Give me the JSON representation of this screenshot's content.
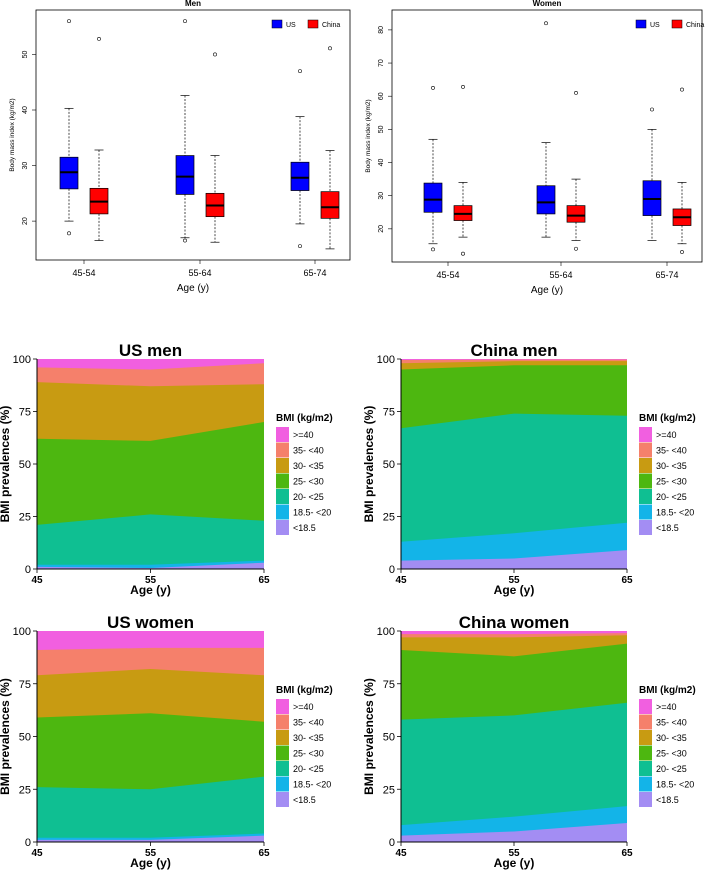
{
  "figure": {
    "bmi_categories": [
      ">=40",
      "35- <40",
      "30- <35",
      "25- <30",
      "20- <25",
      "18.5- <20",
      "<18.5"
    ],
    "category_colors": [
      "#F15FE0",
      "#F5806B",
      "#C89B12",
      "#4DB710",
      "#0FBF92",
      "#13B4E8",
      "#A38DF3"
    ],
    "us_color": "#0000FF",
    "china_color": "#FF0000"
  },
  "chart_data": [
    {
      "type": "box",
      "title": "Men",
      "xlabel": "Age (y)",
      "ylabel": "Body mass index (kg/m2)",
      "ylim": [
        13,
        58
      ],
      "yticks": [
        20,
        30,
        40,
        50
      ],
      "categories": [
        "45-54",
        "55-64",
        "65-74"
      ],
      "legend": [
        "US",
        "China"
      ],
      "series": [
        {
          "name": "US",
          "boxes": [
            {
              "whislo": 20.0,
              "q1": 25.8,
              "med": 28.8,
              "q3": 31.5,
              "whishi": 40.3,
              "outliers": [
                56.0,
                17.8
              ]
            },
            {
              "whislo": 17.0,
              "q1": 24.8,
              "med": 28.0,
              "q3": 31.8,
              "whishi": 42.6,
              "outliers": [
                56.0,
                16.5
              ]
            },
            {
              "whislo": 19.5,
              "q1": 25.5,
              "med": 27.8,
              "q3": 30.6,
              "whishi": 38.8,
              "outliers": [
                47.0,
                15.5
              ]
            }
          ]
        },
        {
          "name": "China",
          "boxes": [
            {
              "whislo": 16.5,
              "q1": 21.3,
              "med": 23.5,
              "q3": 25.9,
              "whishi": 32.8,
              "outliers": [
                52.8
              ]
            },
            {
              "whislo": 16.2,
              "q1": 20.8,
              "med": 22.8,
              "q3": 25.0,
              "whishi": 31.8,
              "outliers": [
                50.0
              ]
            },
            {
              "whislo": 15.0,
              "q1": 20.5,
              "med": 22.5,
              "q3": 25.3,
              "whishi": 32.7,
              "outliers": [
                51.1
              ]
            }
          ]
        }
      ]
    },
    {
      "type": "box",
      "title": "Women",
      "xlabel": "Age (y)",
      "ylabel": "Body mass index (kg/m2)",
      "ylim": [
        10,
        86
      ],
      "yticks": [
        20,
        30,
        40,
        50,
        60,
        70,
        80
      ],
      "categories": [
        "45-54",
        "55-64",
        "65-74"
      ],
      "legend": [
        "US",
        "China"
      ],
      "series": [
        {
          "name": "US",
          "boxes": [
            {
              "whislo": 15.5,
              "q1": 25.0,
              "med": 28.8,
              "q3": 33.8,
              "whishi": 47.0,
              "outliers": [
                62.5,
                13.8
              ]
            },
            {
              "whislo": 17.5,
              "q1": 24.5,
              "med": 28.0,
              "q3": 33.0,
              "whishi": 46.0,
              "outliers": [
                82.0
              ]
            },
            {
              "whislo": 16.5,
              "q1": 24.0,
              "med": 29.0,
              "q3": 34.5,
              "whishi": 50.0,
              "outliers": [
                56.0
              ]
            }
          ]
        },
        {
          "name": "China",
          "boxes": [
            {
              "whislo": 17.5,
              "q1": 22.5,
              "med": 24.5,
              "q3": 27.0,
              "whishi": 34.0,
              "outliers": [
                62.8,
                12.5
              ]
            },
            {
              "whislo": 16.5,
              "q1": 22.0,
              "med": 24.0,
              "q3": 27.0,
              "whishi": 35.0,
              "outliers": [
                61.0,
                14.0
              ]
            },
            {
              "whislo": 15.5,
              "q1": 21.0,
              "med": 23.5,
              "q3": 26.0,
              "whishi": 34.0,
              "outliers": [
                62.0,
                13.0
              ]
            }
          ]
        }
      ]
    },
    {
      "type": "area",
      "title": "US men",
      "xlabel": "Age (y)",
      "ylabel": "BMI prevalences (%)",
      "legend_title": "BMI (kg/m2)",
      "x": [
        45,
        55,
        65
      ],
      "xlim": [
        45,
        65
      ],
      "ylim": [
        0,
        100
      ],
      "yticks": [
        0,
        25,
        50,
        75,
        100
      ],
      "cumulative_upper": {
        "<18.5": [
          1,
          0.5,
          3
        ],
        "18.5- <20": [
          2,
          2,
          4
        ],
        "20- <25": [
          21,
          26,
          23
        ],
        "25- <30": [
          62,
          61,
          70
        ],
        "30- <35": [
          89,
          87,
          88
        ],
        "35- <40": [
          96,
          95,
          98
        ],
        ">=40": [
          100,
          100,
          100
        ]
      }
    },
    {
      "type": "area",
      "title": "China men",
      "xlabel": "Age (y)",
      "ylabel": "BMI prevalences (%)",
      "legend_title": "BMI (kg/m2)",
      "x": [
        45,
        55,
        65
      ],
      "xlim": [
        45,
        65
      ],
      "ylim": [
        0,
        100
      ],
      "yticks": [
        0,
        25,
        50,
        75,
        100
      ],
      "cumulative_upper": {
        "<18.5": [
          4,
          5,
          9
        ],
        "18.5- <20": [
          13,
          17,
          22
        ],
        "20- <25": [
          67,
          74,
          73
        ],
        "25- <30": [
          95,
          97,
          97
        ],
        "30- <35": [
          98,
          99,
          99
        ],
        "35- <40": [
          99.5,
          99.7,
          99.7
        ],
        ">=40": [
          100,
          100,
          100
        ]
      }
    },
    {
      "type": "area",
      "title": "US women",
      "xlabel": "Age (y)",
      "ylabel": "BMI prevalences (%)",
      "legend_title": "BMI (kg/m2)",
      "x": [
        45,
        55,
        65
      ],
      "xlim": [
        45,
        65
      ],
      "ylim": [
        0,
        100
      ],
      "yticks": [
        0,
        25,
        50,
        75,
        100
      ],
      "cumulative_upper": {
        "<18.5": [
          1,
          1,
          3
        ],
        "18.5- <20": [
          2,
          2,
          4
        ],
        "20- <25": [
          26,
          25,
          31
        ],
        "25- <30": [
          59,
          61,
          57
        ],
        "30- <35": [
          79,
          82,
          79
        ],
        "35- <40": [
          91,
          92,
          92
        ],
        ">=40": [
          100,
          100,
          100
        ]
      }
    },
    {
      "type": "area",
      "title": "China women",
      "xlabel": "Age (y)",
      "ylabel": "BMI prevalences (%)",
      "legend_title": "BMI (kg/m2)",
      "x": [
        45,
        55,
        65
      ],
      "xlim": [
        45,
        65
      ],
      "ylim": [
        0,
        100
      ],
      "yticks": [
        0,
        25,
        50,
        75,
        100
      ],
      "cumulative_upper": {
        "<18.5": [
          3,
          5,
          9
        ],
        "18.5- <20": [
          8,
          12,
          17
        ],
        "20- <25": [
          58,
          60,
          66
        ],
        "25- <30": [
          91,
          88,
          94
        ],
        "30- <35": [
          97,
          97,
          98
        ],
        "35- <40": [
          98.5,
          98.5,
          99
        ],
        ">=40": [
          100,
          100,
          100
        ]
      }
    }
  ]
}
